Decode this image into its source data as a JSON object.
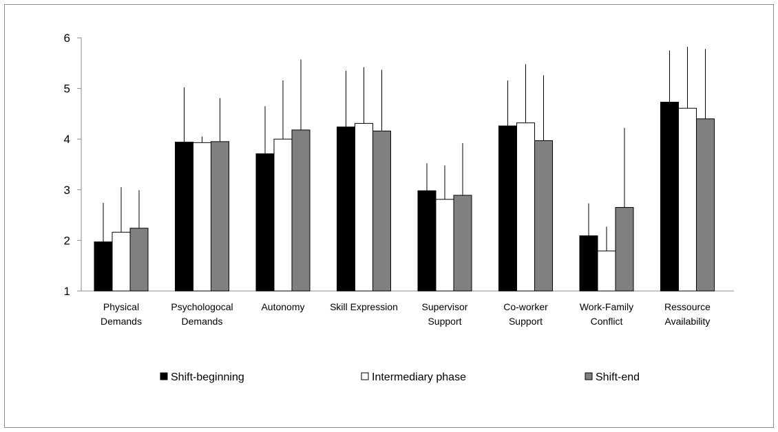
{
  "chart_data": {
    "type": "bar",
    "categories": [
      [
        "Physical",
        "Demands"
      ],
      [
        "Psychologocal",
        "Demands"
      ],
      [
        "Autonomy"
      ],
      [
        "Skill Expression"
      ],
      [
        "Supervisor",
        "Support"
      ],
      [
        "Co-worker",
        "Support"
      ],
      [
        "Work-Family",
        "Conflict"
      ],
      [
        "Ressource",
        "Availability"
      ]
    ],
    "series": [
      {
        "name": "Shift-beginning",
        "color": "#000000",
        "values": [
          1.97,
          3.94,
          3.71,
          4.24,
          2.98,
          4.26,
          2.09,
          4.73
        ],
        "err_upper": [
          2.74,
          5.02,
          4.65,
          5.35,
          3.52,
          5.16,
          2.73,
          5.75
        ]
      },
      {
        "name": "Intermediary phase",
        "color": "#ffffff",
        "values": [
          2.16,
          3.93,
          4.0,
          4.31,
          2.81,
          4.32,
          1.79,
          4.61
        ],
        "err_upper": [
          3.05,
          4.05,
          5.16,
          5.42,
          3.48,
          5.48,
          2.27,
          5.82
        ]
      },
      {
        "name": "Shift-end",
        "color": "#808080",
        "values": [
          2.24,
          3.95,
          4.18,
          4.16,
          2.89,
          3.97,
          2.65,
          4.4
        ],
        "err_upper": [
          2.99,
          4.81,
          5.57,
          5.37,
          3.92,
          5.26,
          4.22,
          5.78
        ]
      }
    ],
    "ylim": [
      1,
      6
    ],
    "yticks": [
      1,
      2,
      3,
      4,
      5,
      6
    ],
    "grid": false,
    "legend_position": "bottom"
  }
}
